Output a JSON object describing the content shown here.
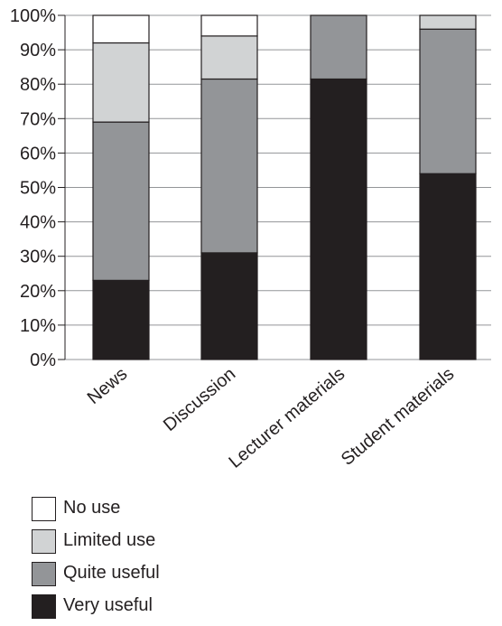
{
  "chart_data": {
    "type": "bar",
    "stacked": true,
    "percent": true,
    "title": "",
    "xlabel": "",
    "ylabel": "",
    "ylim": [
      0,
      100
    ],
    "yticks": [
      "0%",
      "10%",
      "20%",
      "30%",
      "40%",
      "50%",
      "60%",
      "70%",
      "80%",
      "90%",
      "100%"
    ],
    "grid": true,
    "legend_position": "bottom-left",
    "categories": [
      "News",
      "Discussion",
      "Lecturer materials",
      "Student materials"
    ],
    "series": [
      {
        "name": "Very useful",
        "color": "#231f20",
        "values": [
          23,
          31,
          81.5,
          54
        ]
      },
      {
        "name": "Quite useful",
        "color": "#939598",
        "values": [
          46,
          50.5,
          18.5,
          42
        ]
      },
      {
        "name": "Limited use",
        "color": "#d1d3d4",
        "values": [
          23,
          12.5,
          0,
          4
        ]
      },
      {
        "name": "No use",
        "color": "#ffffff",
        "values": [
          8,
          6,
          0,
          0
        ]
      }
    ],
    "legend_order": [
      "No use",
      "Limited use",
      "Quite useful",
      "Very useful"
    ]
  }
}
